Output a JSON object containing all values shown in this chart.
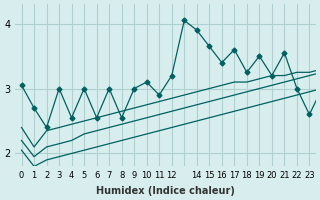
{
  "xlabel": "Humidex (Indice chaleur)",
  "bg_color": "#d8eeee",
  "grid_color": "#b0d0d0",
  "line_color": "#006060",
  "xlim": [
    -0.5,
    23.5
  ],
  "ylim": [
    1.8,
    4.3
  ],
  "yticks": [
    2,
    3,
    4
  ],
  "xtick_labels": [
    "0",
    "1",
    "2",
    "3",
    "4",
    "5",
    "6",
    "7",
    "8",
    "9",
    "10",
    "11",
    "12",
    "",
    "14",
    "15",
    "16",
    "17",
    "18",
    "19",
    "20",
    "21",
    "22",
    "23"
  ],
  "main_y": [
    3.05,
    2.7,
    2.4,
    3.0,
    2.55,
    3.0,
    2.55,
    3.0,
    2.55,
    3.0,
    3.1,
    2.9,
    3.2,
    4.05,
    3.9,
    3.65,
    3.4,
    3.6,
    3.25,
    3.5,
    3.2,
    3.55,
    3.0,
    2.6,
    3.0
  ],
  "lower1_y": [
    2.4,
    2.1,
    2.35,
    2.4,
    2.45,
    2.5,
    2.55,
    2.6,
    2.65,
    2.7,
    2.75,
    2.8,
    2.85,
    2.9,
    2.95,
    3.0,
    3.05,
    3.1,
    3.1,
    3.15,
    3.2,
    3.2,
    3.25,
    3.25,
    3.3
  ],
  "lower2_y": [
    2.2,
    1.95,
    2.1,
    2.15,
    2.2,
    2.3,
    2.35,
    2.4,
    2.45,
    2.5,
    2.55,
    2.6,
    2.65,
    2.7,
    2.75,
    2.8,
    2.85,
    2.9,
    2.95,
    3.0,
    3.05,
    3.1,
    3.15,
    3.2,
    3.25
  ],
  "lower3_y": [
    2.05,
    1.8,
    1.9,
    1.95,
    2.0,
    2.05,
    2.1,
    2.15,
    2.2,
    2.25,
    2.3,
    2.35,
    2.4,
    2.45,
    2.5,
    2.55,
    2.6,
    2.65,
    2.7,
    2.75,
    2.8,
    2.85,
    2.9,
    2.95,
    3.0
  ]
}
